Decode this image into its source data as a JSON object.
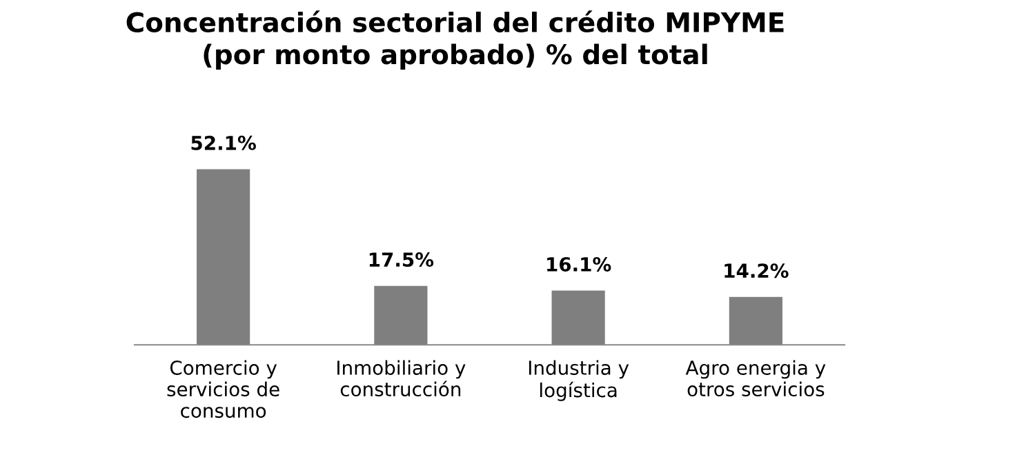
{
  "chart_data": {
    "type": "bar",
    "title": "Concentración sectorial del crédito MIPYME\n(por monto aprobado) % del total",
    "categories": [
      "Comercio y\nservicios de\nconsumo",
      "Inmobiliario y\nconstrucción",
      "Industria y\nlogística",
      "Agro energia y\notros servicios"
    ],
    "values": [
      52.1,
      17.5,
      16.1,
      14.2
    ],
    "value_labels": [
      "52.1%",
      "17.5%",
      "16.1%",
      "14.2%"
    ],
    "color": "#7f7f7f",
    "grid": false,
    "legend": false
  }
}
